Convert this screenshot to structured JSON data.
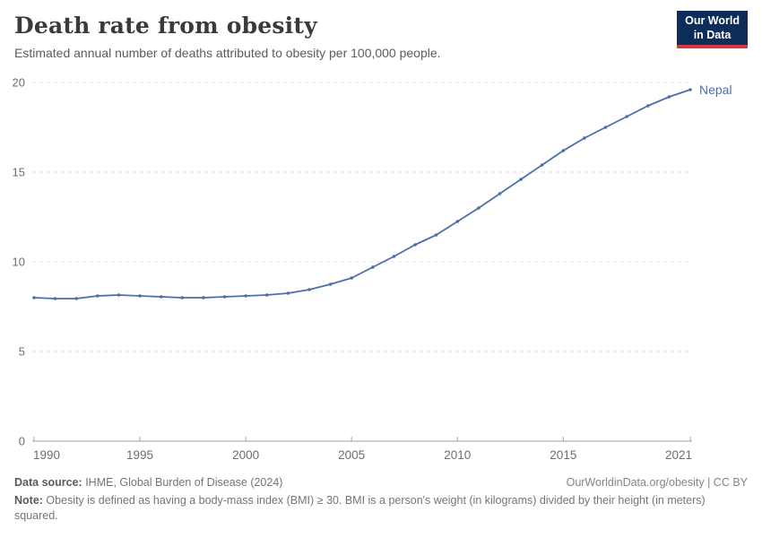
{
  "header": {
    "title": "Death rate from obesity",
    "subtitle": "Estimated annual number of deaths attributed to obesity per 100,000 people.",
    "logo": {
      "line1": "Our World",
      "line2": "in Data",
      "bg_color": "#0c2d5a",
      "accent_color": "#d5383d"
    }
  },
  "chart_data": {
    "type": "line",
    "title": "Death rate from obesity",
    "subtitle": "Estimated annual number of deaths attributed to obesity per 100,000 people.",
    "x": [
      1990,
      1991,
      1992,
      1993,
      1994,
      1995,
      1996,
      1997,
      1998,
      1999,
      2000,
      2001,
      2002,
      2003,
      2004,
      2005,
      2006,
      2007,
      2008,
      2009,
      2010,
      2011,
      2012,
      2013,
      2014,
      2015,
      2016,
      2017,
      2018,
      2019,
      2020,
      2021
    ],
    "series": [
      {
        "name": "Nepal",
        "color": "#4c6fab",
        "values": [
          8.0,
          7.95,
          7.95,
          8.1,
          8.15,
          8.1,
          8.05,
          8.0,
          8.0,
          8.05,
          8.1,
          8.15,
          8.25,
          8.45,
          8.75,
          9.1,
          9.7,
          10.3,
          10.95,
          11.5,
          12.25,
          13.0,
          13.8,
          14.6,
          15.4,
          16.2,
          16.9,
          17.5,
          18.1,
          18.7,
          19.2,
          19.6
        ]
      }
    ],
    "x_ticks": [
      1990,
      1995,
      2000,
      2005,
      2010,
      2015,
      2021
    ],
    "y_ticks": [
      0,
      5,
      10,
      15,
      20
    ],
    "xlim": [
      1990,
      2021
    ],
    "ylim": [
      0,
      20
    ],
    "xlabel": "",
    "ylabel": "",
    "grid": "horizontal-dashed",
    "legend_position": "line-end-label"
  },
  "footer": {
    "source_label": "Data source:",
    "source_text": " IHME, Global Burden of Disease (2024)",
    "rights": "OurWorldinData.org/obesity | CC BY",
    "note_label": "Note:",
    "note_text": " Obesity is defined as having a body-mass index (BMI) ≥ 30. BMI is a person's weight (in kilograms) divided by their height (in meters) squared."
  }
}
